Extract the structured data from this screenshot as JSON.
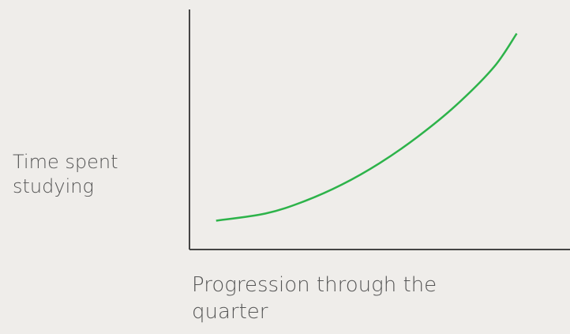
{
  "chart_data": {
    "type": "line",
    "y_label": "Time spent studying",
    "x_label": "Progression through the quarter",
    "x": [
      7,
      20,
      30,
      40,
      50,
      60,
      70,
      80,
      86
    ],
    "series": [
      {
        "color": "#2db34a",
        "values": [
          12,
          15,
          20,
          27,
          36,
          47,
          60,
          76,
          90
        ]
      }
    ],
    "xlim": [
      0,
      100
    ],
    "ylim": [
      0,
      100
    ]
  }
}
